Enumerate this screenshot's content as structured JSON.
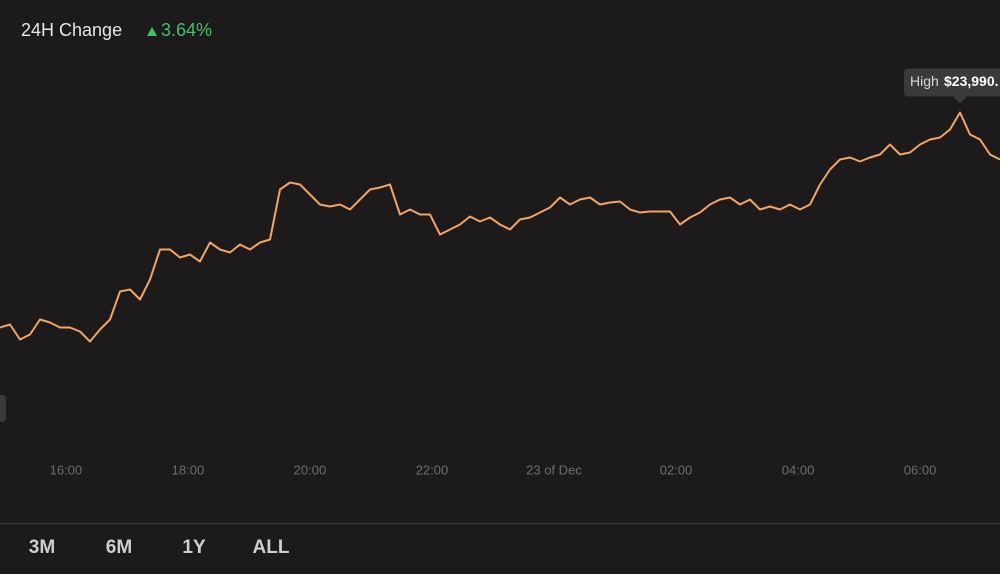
{
  "header": {
    "title": "24H Change",
    "change": "3.64%"
  },
  "chart_data": {
    "type": "line",
    "color": "#f6a35e",
    "values": [
      23130,
      23142,
      23082,
      23102,
      23162,
      23150,
      23130,
      23130,
      23114,
      23074,
      23122,
      23162,
      23274,
      23282,
      23242,
      23322,
      23442,
      23442,
      23410,
      23422,
      23394,
      23470,
      23442,
      23430,
      23462,
      23442,
      23470,
      23482,
      23682,
      23710,
      23702,
      23662,
      23622,
      23614,
      23622,
      23602,
      23642,
      23682,
      23690,
      23702,
      23582,
      23602,
      23582,
      23582,
      23502,
      23522,
      23542,
      23574,
      23554,
      23570,
      23542,
      23522,
      23562,
      23570,
      23590,
      23610,
      23650,
      23622,
      23642,
      23650,
      23622,
      23630,
      23634,
      23602,
      23590,
      23594,
      23594,
      23594,
      23542,
      23570,
      23590,
      23622,
      23642,
      23650,
      23622,
      23642,
      23602,
      23614,
      23602,
      23622,
      23602,
      23622,
      23702,
      23762,
      23802,
      23810,
      23794,
      23810,
      23822,
      23862,
      23822,
      23830,
      23862,
      23882,
      23890,
      23922,
      23990,
      23902,
      23882,
      23822,
      23802
    ],
    "ylim": [
      22600,
      24200
    ],
    "xlim": [
      14.92,
      31.31
    ],
    "xticks": [
      {
        "value": 16,
        "label": "16:00"
      },
      {
        "value": 18,
        "label": "18:00"
      },
      {
        "value": 20,
        "label": "20:00"
      },
      {
        "value": 22,
        "label": "22:00"
      },
      {
        "value": 24,
        "label": "23 of Dec"
      },
      {
        "value": 26,
        "label": "02:00"
      },
      {
        "value": 28,
        "label": "04:00"
      },
      {
        "value": 30,
        "label": "06:00"
      }
    ],
    "annotations": [
      {
        "label": "High",
        "value": 23990,
        "value_label": "$23,990."
      }
    ]
  },
  "ranges": [
    "3M",
    "6M",
    "1Y",
    "ALL"
  ]
}
